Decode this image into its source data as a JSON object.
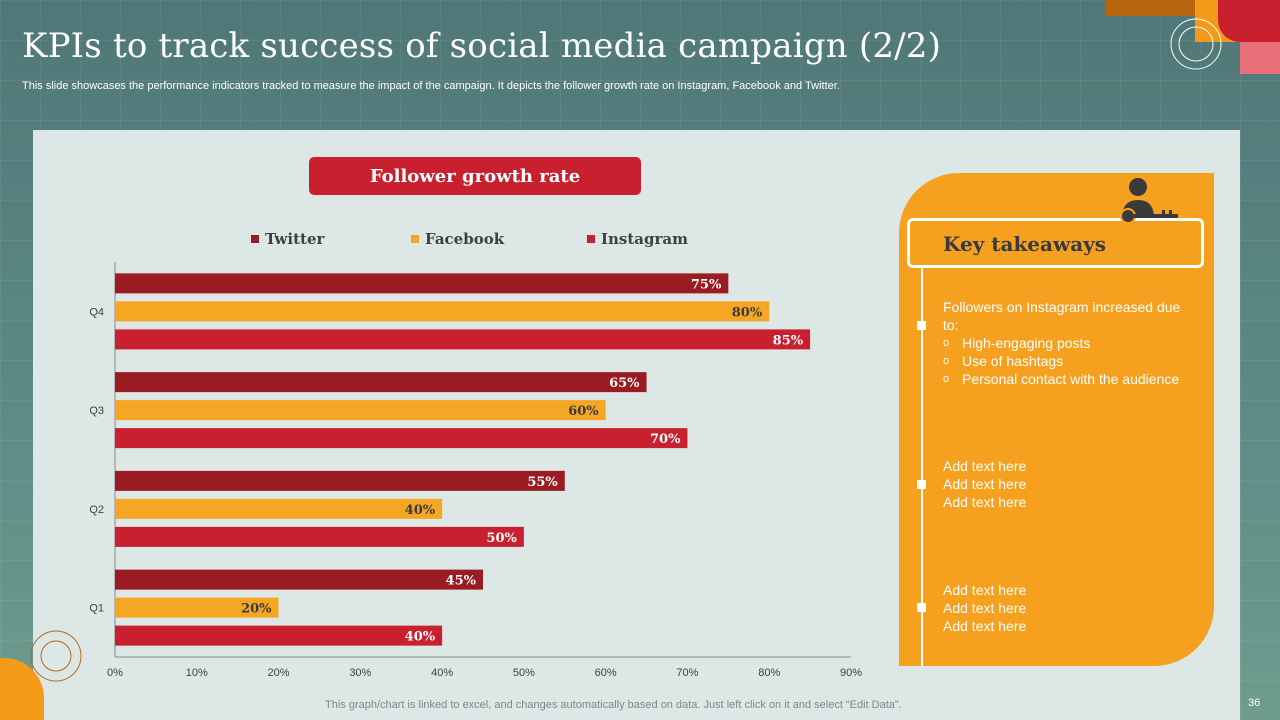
{
  "slide": {
    "title": "KPIs to track success of social media campaign (2/2)",
    "subtitle": "This slide showcases the performance indicators tracked to measure the impact of the campaign. It depicts the follower growth rate on Instagram, Facebook and Twitter.",
    "footnote": "This graph/chart is linked to excel,  and changes automatically based on data. Just left click on it and select “Edit Data”.",
    "page_number": "36"
  },
  "chart_data": {
    "type": "bar",
    "orientation": "horizontal",
    "title": "Follower growth rate",
    "categories": [
      "Q1",
      "Q2",
      "Q3",
      "Q4"
    ],
    "series": [
      {
        "name": "Twitter",
        "color": "#9a1b22",
        "values": [
          45,
          55,
          65,
          75
        ],
        "labels": [
          "45%",
          "55%",
          "65%",
          "75%"
        ]
      },
      {
        "name": "Facebook",
        "color": "#f5a623",
        "values": [
          20,
          40,
          60,
          80
        ],
        "labels": [
          "20%",
          "40%",
          "60%",
          "80%"
        ]
      },
      {
        "name": "Instagram",
        "color": "#c8202f",
        "values": [
          40,
          50,
          70,
          85
        ],
        "labels": [
          "40%",
          "50%",
          "70%",
          "85%"
        ]
      }
    ],
    "xlim": [
      0,
      90
    ],
    "xticks": [
      "0%",
      "10%",
      "20%",
      "30%",
      "40%",
      "50%",
      "60%",
      "70%",
      "80%",
      "90%"
    ],
    "legend_position": "top",
    "grid": false
  },
  "takeaways": {
    "heading": "Key takeaways",
    "point1": {
      "text": "Followers on Instagram increased due to:",
      "subpoints": [
        "High-engaging posts",
        "Use of hashtags",
        "Personal contact with the audience"
      ],
      "sub_bullet": "o"
    },
    "point2": [
      "Add text here",
      "Add text here",
      "Add text here"
    ],
    "point3": [
      "Add text here",
      "Add text here",
      "Add text here"
    ]
  },
  "colors": {
    "accent_red": "#c8202f",
    "accent_orange": "#f5a01f",
    "dark_red": "#9a1b22",
    "background": "#5a8683",
    "panel": "#dce7e6"
  }
}
